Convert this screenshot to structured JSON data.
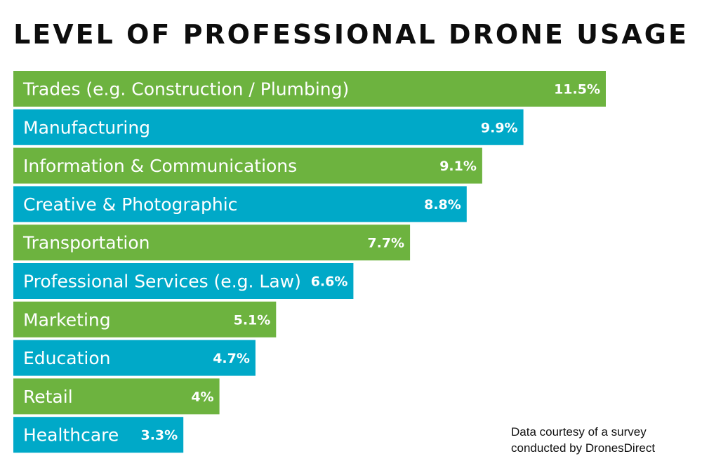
{
  "chart_data": {
    "type": "bar",
    "orientation": "horizontal",
    "title": "LEVEL OF PROFESSIONAL DRONE USAGE",
    "xlabel": "",
    "ylabel": "",
    "xlim": [
      0,
      11.5
    ],
    "categories": [
      "Trades (e.g. Construction / Plumbing)",
      "Manufacturing",
      "Information & Communications",
      "Creative & Photographic",
      "Transportation",
      "Professional Services (e.g. Law)",
      "Marketing",
      "Education",
      "Retail",
      "Healthcare"
    ],
    "values": [
      11.5,
      9.9,
      9.1,
      8.8,
      7.7,
      6.6,
      5.1,
      4.7,
      4.0,
      3.3
    ],
    "value_labels": [
      "11.5%",
      "9.9%",
      "9.1%",
      "8.8%",
      "7.7%",
      "6.6%",
      "5.1%",
      "4.7%",
      "4%",
      "3.3%"
    ],
    "colors": [
      "#6db33f",
      "#00a9c8"
    ],
    "color_pattern": "alternating",
    "grid": false,
    "legend": "none"
  },
  "note": {
    "line1": "Data courtesy of a survey",
    "line2": "conducted by DronesDirect"
  }
}
